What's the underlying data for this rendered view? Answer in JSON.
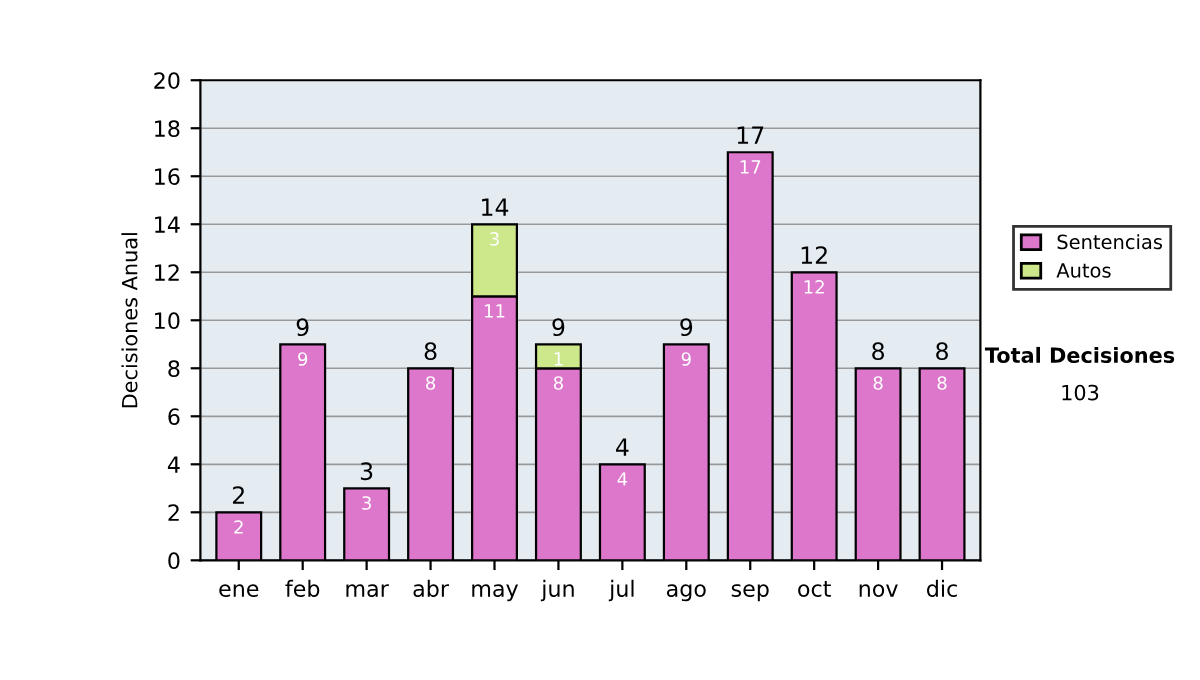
{
  "chart_data": {
    "type": "bar",
    "stacked": true,
    "ylabel": "Decisiones Anual",
    "categories": [
      "ene",
      "feb",
      "mar",
      "abr",
      "may",
      "jun",
      "jul",
      "ago",
      "sep",
      "oct",
      "nov",
      "dic"
    ],
    "series": [
      {
        "name": "Sentencias",
        "color": "#dd77cc",
        "values": [
          2,
          9,
          3,
          8,
          11,
          8,
          4,
          9,
          17,
          12,
          8,
          8
        ],
        "value_labels": [
          "2",
          "9",
          "3",
          "8",
          "11",
          "8",
          "4",
          "9",
          "17",
          "12",
          "8",
          "8"
        ]
      },
      {
        "name": "Autos",
        "color": "#cce88a",
        "values": [
          null,
          null,
          null,
          null,
          3,
          1,
          null,
          null,
          null,
          null,
          null,
          null
        ],
        "value_labels": [
          null,
          null,
          null,
          null,
          "3",
          "1",
          null,
          null,
          null,
          null,
          null,
          null
        ]
      }
    ],
    "totals": [
      "2",
      "9",
      "3",
      "8",
      "14",
      "9",
      "4",
      "9",
      "17",
      "12",
      "8",
      "8"
    ],
    "ylim": [
      0,
      20
    ],
    "yticks": [
      0,
      2,
      4,
      6,
      8,
      10,
      12,
      14,
      16,
      18,
      20
    ],
    "grid": "y",
    "legend": "right",
    "annotations": [
      "Total Decisiones",
      "103"
    ]
  }
}
